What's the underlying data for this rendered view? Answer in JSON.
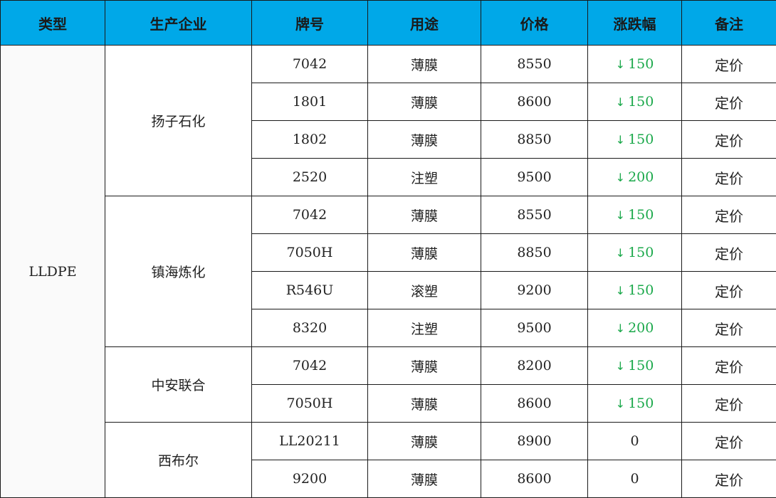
{
  "headers": [
    "类型",
    "生产企业",
    "牌号",
    "用途",
    "价格",
    "涨跌幅",
    "备注"
  ],
  "type_name": "LLDPE",
  "colors": {
    "header_bg": "#00a8e8",
    "down": "#1aa84a",
    "flat": "#222222"
  },
  "groups": [
    {
      "company": "扬子石化",
      "rows": [
        {
          "grade": "7042",
          "use": "薄膜",
          "price": "8550",
          "change": "150",
          "dir": "down",
          "remark": "定价"
        },
        {
          "grade": "1801",
          "use": "薄膜",
          "price": "8600",
          "change": "150",
          "dir": "down",
          "remark": "定价"
        },
        {
          "grade": "1802",
          "use": "薄膜",
          "price": "8850",
          "change": "150",
          "dir": "down",
          "remark": "定价"
        },
        {
          "grade": "2520",
          "use": "注塑",
          "price": "9500",
          "change": "200",
          "dir": "down",
          "remark": "定价"
        }
      ]
    },
    {
      "company": "镇海炼化",
      "rows": [
        {
          "grade": "7042",
          "use": "薄膜",
          "price": "8550",
          "change": "150",
          "dir": "down",
          "remark": "定价"
        },
        {
          "grade": "7050H",
          "use": "薄膜",
          "price": "8850",
          "change": "150",
          "dir": "down",
          "remark": "定价"
        },
        {
          "grade": "R546U",
          "use": "滚塑",
          "price": "9200",
          "change": "150",
          "dir": "down",
          "remark": "定价"
        },
        {
          "grade": "8320",
          "use": "注塑",
          "price": "9500",
          "change": "200",
          "dir": "down",
          "remark": "定价"
        }
      ]
    },
    {
      "company": "中安联合",
      "rows": [
        {
          "grade": "7042",
          "use": "薄膜",
          "price": "8200",
          "change": "150",
          "dir": "down",
          "remark": "定价"
        },
        {
          "grade": "7050H",
          "use": "薄膜",
          "price": "8600",
          "change": "150",
          "dir": "down",
          "remark": "定价"
        }
      ]
    },
    {
      "company": "西布尔",
      "rows": [
        {
          "grade": "LL20211",
          "use": "薄膜",
          "price": "8900",
          "change": "0",
          "dir": "flat",
          "remark": "定价"
        },
        {
          "grade": "9200",
          "use": "薄膜",
          "price": "8600",
          "change": "0",
          "dir": "flat",
          "remark": "定价"
        }
      ]
    }
  ]
}
